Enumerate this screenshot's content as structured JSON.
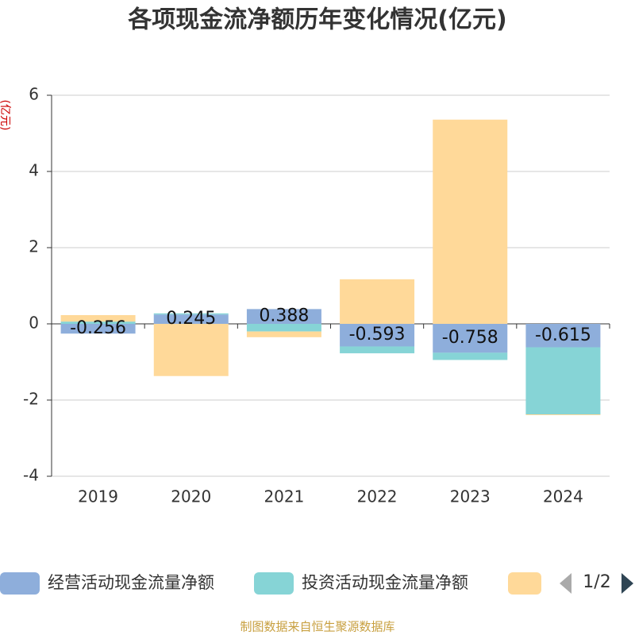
{
  "chart_data": {
    "type": "bar",
    "stacked": true,
    "title": "各项现金流净额历年变化情况(亿元)",
    "y_label": "(亿元)",
    "categories": [
      "2019",
      "2020",
      "2021",
      "2022",
      "2023",
      "2024"
    ],
    "series": [
      {
        "name": "经营活动现金流量净额",
        "color": "#8eaedb",
        "values": [
          -0.256,
          0.245,
          0.388,
          -0.593,
          -0.758,
          -0.615
        ],
        "labels": true
      },
      {
        "name": "投资活动现金流量净额",
        "color": "#86d4d6",
        "values": [
          0.06,
          0.03,
          -0.2,
          -0.18,
          -0.19,
          -1.76
        ]
      },
      {
        "color": "#ffd999",
        "values": [
          0.17,
          -1.37,
          -0.15,
          1.17,
          5.36,
          -0.02
        ]
      }
    ],
    "ylim": [
      -4,
      6
    ],
    "yticks": [
      -4,
      -2,
      0,
      2,
      4,
      6
    ],
    "grid": true,
    "legend_page": "1/2",
    "source": "制图数据来自恒生聚源数据库"
  }
}
